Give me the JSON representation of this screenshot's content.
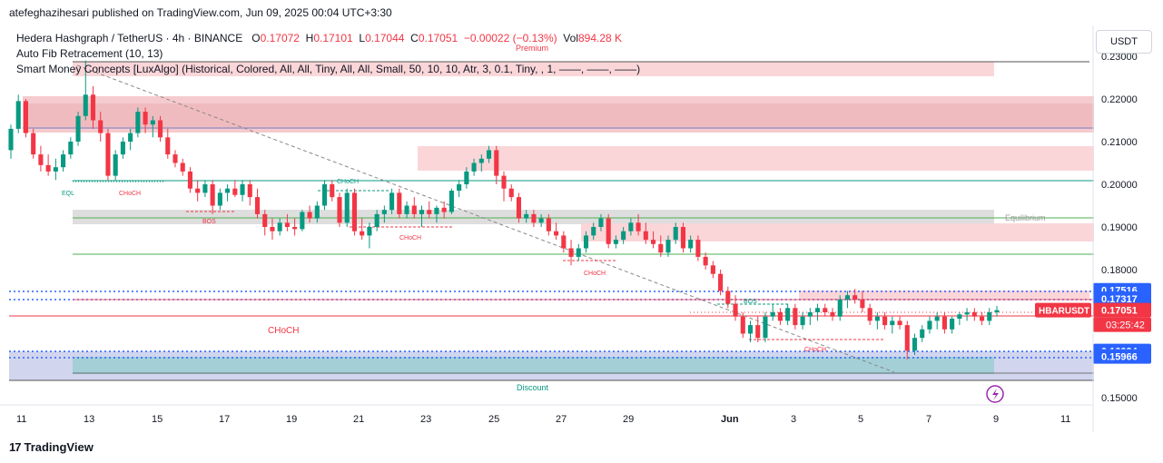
{
  "header": {
    "publisher_line": "atefeghazihesari published on TradingView.com, Jun 09, 2025 00:04 UTC+3:30"
  },
  "legend": {
    "symbol_line": "Hedera Hashgraph / TetherUS · 4h · BINANCE",
    "open_label": "O",
    "open": "0.17072",
    "high_label": "H",
    "high": "0.17101",
    "low_label": "L",
    "low": "0.17044",
    "close_label": "C",
    "close": "0.17051",
    "change": "−0.00022 (−0.13%)",
    "vol_label": "Vol",
    "vol": "894.28 K",
    "indicator_1": "Auto Fib Retracement (10, 13)",
    "indicator_2": "Smart Money Concepts [LuxAlgo] (Historical, Colored, All, All, Tiny, All, All, Small, 50, 10, 10, Atr, 3, 0.1, Tiny, , 1, ——, ——, ——)"
  },
  "currency_button": "USDT",
  "footer": {
    "brand": "TradingView",
    "brand_icon": "tradingview-logo-icon"
  },
  "colors": {
    "up": "#089981",
    "down": "#f23645",
    "blue": "#2962ff",
    "premium_zone": "#f8c8cc",
    "discount_zone": "#c5cae9",
    "equilibrium_zone": "#d9d9d9",
    "fib_green": "#4caf50",
    "teal_line": "#089981"
  },
  "chart_data": {
    "type": "candlestick",
    "symbol": "HBARUSDT",
    "y_axis_ticks": [
      "0.23000",
      "0.22000",
      "0.21000",
      "0.20000",
      "0.19000",
      "0.18000",
      "0.15000"
    ],
    "ylim": [
      0.1465,
      0.2315
    ],
    "x_axis_ticks": [
      "11",
      "13",
      "15",
      "17",
      "19",
      "21",
      "23",
      "25",
      "27",
      "29",
      "Jun",
      "3",
      "5",
      "7",
      "9",
      "11"
    ],
    "price_labels": [
      {
        "value": 0.17516,
        "text": "0.17516",
        "color": "#2962ff"
      },
      {
        "value": 0.17317,
        "text": "0.17317",
        "color": "#2962ff"
      },
      {
        "value": 0.17051,
        "text": "0.17051",
        "color": "#f23645"
      },
      {
        "value": 0.16094,
        "text": "0.16094",
        "color": "#2962ff"
      },
      {
        "value": 0.15966,
        "text": "0.15966",
        "color": "#2962ff"
      }
    ],
    "symbol_tag": "HBARUSDT",
    "countdown": "03:25:42",
    "zones": [
      {
        "label": "Premium",
        "from": 0.2255,
        "to": 0.2285,
        "color": "#f8c8cc"
      },
      {
        "label": "Equilibrium",
        "from": 0.1908,
        "to": 0.1942,
        "color": "#d9d9d9"
      },
      {
        "label": "Discount",
        "from": 0.1568,
        "to": 0.1605,
        "color": "#c5cae9"
      }
    ],
    "annotations": [
      "EQL",
      "CHoCH",
      "BOS",
      "CHoCH",
      "CHoCH",
      "CHoCH",
      "BOS",
      "CHoCH",
      "CHoCH",
      "CHoCH"
    ],
    "lightning_icon": "lightning-icon",
    "candles_ohlc": [
      [
        0.208,
        0.214,
        0.206,
        0.213
      ],
      [
        0.213,
        0.221,
        0.212,
        0.2195
      ],
      [
        0.2195,
        0.22,
        0.211,
        0.212
      ],
      [
        0.212,
        0.213,
        0.206,
        0.207
      ],
      [
        0.207,
        0.209,
        0.203,
        0.2045
      ],
      [
        0.2045,
        0.207,
        0.202,
        0.203
      ],
      [
        0.203,
        0.206,
        0.201,
        0.204
      ],
      [
        0.204,
        0.208,
        0.203,
        0.207
      ],
      [
        0.207,
        0.211,
        0.206,
        0.21
      ],
      [
        0.21,
        0.217,
        0.209,
        0.216
      ],
      [
        0.216,
        0.229,
        0.215,
        0.221
      ],
      [
        0.221,
        0.223,
        0.213,
        0.215
      ],
      [
        0.215,
        0.217,
        0.21,
        0.212
      ],
      [
        0.212,
        0.213,
        0.201,
        0.202
      ],
      [
        0.202,
        0.208,
        0.201,
        0.207
      ],
      [
        0.207,
        0.211,
        0.206,
        0.21
      ],
      [
        0.21,
        0.213,
        0.208,
        0.212
      ],
      [
        0.212,
        0.218,
        0.211,
        0.217
      ],
      [
        0.217,
        0.218,
        0.212,
        0.214
      ],
      [
        0.214,
        0.216,
        0.211,
        0.215
      ],
      [
        0.215,
        0.216,
        0.21,
        0.211
      ],
      [
        0.211,
        0.213,
        0.206,
        0.207
      ],
      [
        0.207,
        0.208,
        0.204,
        0.205
      ],
      [
        0.205,
        0.206,
        0.202,
        0.203
      ],
      [
        0.203,
        0.204,
        0.198,
        0.199
      ],
      [
        0.199,
        0.201,
        0.196,
        0.198
      ],
      [
        0.198,
        0.201,
        0.197,
        0.2
      ],
      [
        0.2,
        0.201,
        0.193,
        0.195
      ],
      [
        0.195,
        0.199,
        0.194,
        0.198
      ],
      [
        0.198,
        0.2,
        0.196,
        0.199
      ],
      [
        0.199,
        0.201,
        0.197,
        0.1975
      ],
      [
        0.1975,
        0.201,
        0.196,
        0.2
      ],
      [
        0.2,
        0.201,
        0.195,
        0.197
      ],
      [
        0.197,
        0.199,
        0.192,
        0.193
      ],
      [
        0.193,
        0.194,
        0.188,
        0.19
      ],
      [
        0.19,
        0.192,
        0.187,
        0.189
      ],
      [
        0.189,
        0.192,
        0.188,
        0.191
      ],
      [
        0.191,
        0.193,
        0.189,
        0.19
      ],
      [
        0.19,
        0.192,
        0.188,
        0.1895
      ],
      [
        0.1895,
        0.194,
        0.189,
        0.1935
      ],
      [
        0.1935,
        0.195,
        0.191,
        0.192
      ],
      [
        0.192,
        0.196,
        0.191,
        0.195
      ],
      [
        0.195,
        0.201,
        0.194,
        0.2
      ],
      [
        0.2,
        0.201,
        0.196,
        0.197
      ],
      [
        0.197,
        0.198,
        0.19,
        0.191
      ],
      [
        0.191,
        0.199,
        0.19,
        0.198
      ],
      [
        0.198,
        0.199,
        0.188,
        0.189
      ],
      [
        0.189,
        0.192,
        0.187,
        0.188
      ],
      [
        0.188,
        0.191,
        0.185,
        0.19
      ],
      [
        0.19,
        0.194,
        0.189,
        0.193
      ],
      [
        0.193,
        0.195,
        0.191,
        0.194
      ],
      [
        0.194,
        0.199,
        0.193,
        0.198
      ],
      [
        0.198,
        0.199,
        0.192,
        0.193
      ],
      [
        0.193,
        0.196,
        0.192,
        0.195
      ],
      [
        0.195,
        0.197,
        0.192,
        0.193
      ],
      [
        0.193,
        0.195,
        0.19,
        0.194
      ],
      [
        0.194,
        0.196,
        0.192,
        0.193
      ],
      [
        0.193,
        0.195,
        0.191,
        0.1945
      ],
      [
        0.1945,
        0.196,
        0.192,
        0.1935
      ],
      [
        0.1935,
        0.199,
        0.193,
        0.1985
      ],
      [
        0.1985,
        0.201,
        0.197,
        0.2
      ],
      [
        0.2,
        0.204,
        0.199,
        0.203
      ],
      [
        0.203,
        0.206,
        0.202,
        0.205
      ],
      [
        0.205,
        0.207,
        0.203,
        0.206
      ],
      [
        0.206,
        0.209,
        0.205,
        0.208
      ],
      [
        0.208,
        0.209,
        0.2,
        0.202
      ],
      [
        0.202,
        0.203,
        0.196,
        0.199
      ],
      [
        0.199,
        0.2,
        0.196,
        0.197
      ],
      [
        0.197,
        0.198,
        0.191,
        0.192
      ],
      [
        0.192,
        0.194,
        0.191,
        0.193
      ],
      [
        0.193,
        0.194,
        0.19,
        0.191
      ],
      [
        0.191,
        0.193,
        0.19,
        0.192
      ],
      [
        0.192,
        0.193,
        0.188,
        0.189
      ],
      [
        0.189,
        0.191,
        0.187,
        0.188
      ],
      [
        0.188,
        0.189,
        0.184,
        0.185
      ],
      [
        0.185,
        0.187,
        0.181,
        0.183
      ],
      [
        0.183,
        0.186,
        0.182,
        0.185
      ],
      [
        0.185,
        0.189,
        0.184,
        0.188
      ],
      [
        0.188,
        0.191,
        0.187,
        0.19
      ],
      [
        0.19,
        0.193,
        0.189,
        0.192
      ],
      [
        0.192,
        0.193,
        0.185,
        0.186
      ],
      [
        0.186,
        0.188,
        0.185,
        0.187
      ],
      [
        0.187,
        0.19,
        0.186,
        0.189
      ],
      [
        0.189,
        0.192,
        0.188,
        0.191
      ],
      [
        0.191,
        0.193,
        0.188,
        0.189
      ],
      [
        0.189,
        0.191,
        0.186,
        0.187
      ],
      [
        0.187,
        0.189,
        0.185,
        0.186
      ],
      [
        0.186,
        0.188,
        0.183,
        0.184
      ],
      [
        0.184,
        0.188,
        0.183,
        0.187
      ],
      [
        0.187,
        0.191,
        0.186,
        0.19
      ],
      [
        0.19,
        0.191,
        0.184,
        0.185
      ],
      [
        0.185,
        0.188,
        0.184,
        0.187
      ],
      [
        0.187,
        0.188,
        0.182,
        0.183
      ],
      [
        0.183,
        0.184,
        0.18,
        0.181
      ],
      [
        0.181,
        0.182,
        0.178,
        0.179
      ],
      [
        0.179,
        0.18,
        0.174,
        0.175
      ],
      [
        0.175,
        0.176,
        0.171,
        0.172
      ],
      [
        0.172,
        0.174,
        0.168,
        0.169
      ],
      [
        0.169,
        0.17,
        0.164,
        0.165
      ],
      [
        0.165,
        0.168,
        0.163,
        0.167
      ],
      [
        0.167,
        0.169,
        0.163,
        0.164
      ],
      [
        0.164,
        0.17,
        0.163,
        0.169
      ],
      [
        0.169,
        0.172,
        0.168,
        0.17
      ],
      [
        0.17,
        0.171,
        0.167,
        0.168
      ],
      [
        0.168,
        0.172,
        0.167,
        0.171
      ],
      [
        0.171,
        0.172,
        0.166,
        0.167
      ],
      [
        0.167,
        0.17,
        0.166,
        0.169
      ],
      [
        0.169,
        0.171,
        0.167,
        0.17
      ],
      [
        0.17,
        0.172,
        0.168,
        0.171
      ],
      [
        0.171,
        0.172,
        0.169,
        0.17
      ],
      [
        0.17,
        0.171,
        0.168,
        0.169
      ],
      [
        0.169,
        0.174,
        0.168,
        0.173
      ],
      [
        0.173,
        0.175,
        0.171,
        0.174
      ],
      [
        0.174,
        0.1755,
        0.172,
        0.173
      ],
      [
        0.173,
        0.175,
        0.17,
        0.171
      ],
      [
        0.171,
        0.172,
        0.167,
        0.168
      ],
      [
        0.168,
        0.17,
        0.166,
        0.169
      ],
      [
        0.169,
        0.17,
        0.166,
        0.167
      ],
      [
        0.167,
        0.169,
        0.165,
        0.168
      ],
      [
        0.168,
        0.169,
        0.166,
        0.167
      ],
      [
        0.167,
        0.168,
        0.159,
        0.161
      ],
      [
        0.161,
        0.165,
        0.16,
        0.164
      ],
      [
        0.164,
        0.167,
        0.163,
        0.166
      ],
      [
        0.166,
        0.169,
        0.165,
        0.168
      ],
      [
        0.168,
        0.17,
        0.166,
        0.169
      ],
      [
        0.169,
        0.17,
        0.165,
        0.166
      ],
      [
        0.166,
        0.169,
        0.165,
        0.1685
      ],
      [
        0.1685,
        0.17,
        0.167,
        0.1695
      ],
      [
        0.1695,
        0.171,
        0.168,
        0.17
      ],
      [
        0.17,
        0.171,
        0.168,
        0.169
      ],
      [
        0.169,
        0.17,
        0.167,
        0.168
      ],
      [
        0.168,
        0.171,
        0.167,
        0.17
      ],
      [
        0.17,
        0.1715,
        0.169,
        0.1705
      ]
    ]
  }
}
